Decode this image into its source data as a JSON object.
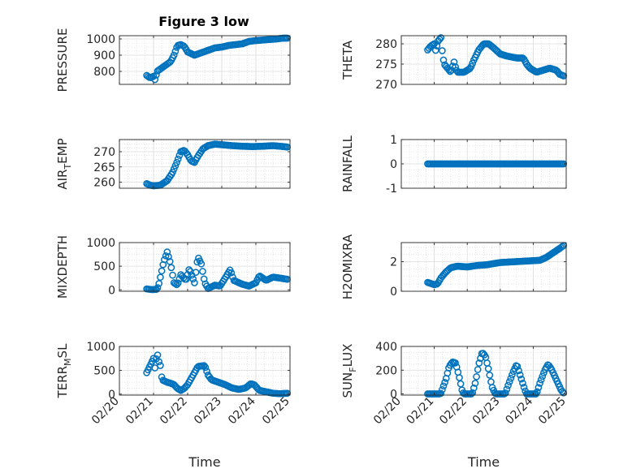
{
  "figure": {
    "title": "Figure 3 low"
  },
  "colors": {
    "marker": "#0072BD",
    "grid": "#d4d4d4",
    "axis": "#262626"
  },
  "chart_data": [
    {
      "type": "scatter",
      "id": "pressure",
      "ylabel": "PRESSURE",
      "ylim": [
        720,
        1020
      ],
      "yticks": [
        800,
        900,
        1000
      ],
      "ytick_labels": [
        "800",
        "900",
        "1000"
      ],
      "xlim": [
        0,
        5
      ],
      "xticks": [
        0,
        1,
        2,
        3,
        4,
        5
      ],
      "xtick_labels": [
        "02/20",
        "02/21",
        "02/22",
        "02/23",
        "02/24",
        "02/25"
      ],
      "show_xticklabels": false,
      "xlabel": "",
      "grid": true,
      "keypoints": [
        [
          0.8,
          775
        ],
        [
          0.9,
          760
        ],
        [
          1.0,
          770
        ],
        [
          1.05,
          745
        ],
        [
          1.1,
          800
        ],
        [
          1.3,
          830
        ],
        [
          1.5,
          860
        ],
        [
          1.6,
          900
        ],
        [
          1.7,
          960
        ],
        [
          1.8,
          965
        ],
        [
          1.9,
          955
        ],
        [
          2.0,
          920
        ],
        [
          2.2,
          900
        ],
        [
          2.4,
          915
        ],
        [
          2.6,
          930
        ],
        [
          2.8,
          945
        ],
        [
          3.0,
          950
        ],
        [
          3.2,
          960
        ],
        [
          3.4,
          965
        ],
        [
          3.6,
          970
        ],
        [
          3.8,
          985
        ],
        [
          4.0,
          990
        ],
        [
          4.3,
          995
        ],
        [
          4.6,
          1000
        ],
        [
          4.8,
          1005
        ],
        [
          4.95,
          1005
        ]
      ]
    },
    {
      "type": "scatter",
      "id": "theta",
      "ylabel": "THETA",
      "ylim": [
        270,
        282
      ],
      "yticks": [
        270,
        275,
        280
      ],
      "ytick_labels": [
        "270",
        "275",
        "280"
      ],
      "xlim": [
        0,
        5
      ],
      "xticks": [
        0,
        1,
        2,
        3,
        4,
        5
      ],
      "xtick_labels": [
        "02/20",
        "02/21",
        "02/22",
        "02/23",
        "02/24",
        "02/25"
      ],
      "show_xticklabels": false,
      "xlabel": "",
      "grid": true,
      "keypoints": [
        [
          0.8,
          278.5
        ],
        [
          0.9,
          279.5
        ],
        [
          1.0,
          280
        ],
        [
          1.05,
          278
        ],
        [
          1.1,
          280.5
        ],
        [
          1.2,
          281.5
        ],
        [
          1.25,
          277.5
        ],
        [
          1.3,
          275
        ],
        [
          1.4,
          274
        ],
        [
          1.5,
          273
        ],
        [
          1.6,
          275.5
        ],
        [
          1.65,
          274
        ],
        [
          1.7,
          273
        ],
        [
          1.9,
          273
        ],
        [
          2.1,
          274
        ],
        [
          2.2,
          276
        ],
        [
          2.35,
          278.5
        ],
        [
          2.5,
          280
        ],
        [
          2.65,
          280
        ],
        [
          2.8,
          279
        ],
        [
          3.0,
          277.5
        ],
        [
          3.2,
          277
        ],
        [
          3.5,
          276.5
        ],
        [
          3.7,
          276.5
        ],
        [
          3.8,
          275
        ],
        [
          3.9,
          274
        ],
        [
          4.1,
          273
        ],
        [
          4.3,
          273.5
        ],
        [
          4.5,
          274
        ],
        [
          4.7,
          273.5
        ],
        [
          4.8,
          272.5
        ],
        [
          4.95,
          272
        ]
      ]
    },
    {
      "type": "scatter",
      "id": "airtemp",
      "ylabel": "AIR_TEMP",
      "ylim": [
        258,
        274
      ],
      "yticks": [
        260,
        265,
        270
      ],
      "ytick_labels": [
        "260",
        "265",
        "270"
      ],
      "xlim": [
        0,
        5
      ],
      "xticks": [
        0,
        1,
        2,
        3,
        4,
        5
      ],
      "xtick_labels": [
        "02/20",
        "02/21",
        "02/22",
        "02/23",
        "02/24",
        "02/25"
      ],
      "show_xticklabels": false,
      "xlabel": "",
      "grid": true,
      "keypoints": [
        [
          0.8,
          259.5
        ],
        [
          0.9,
          259
        ],
        [
          1.0,
          258.8
        ],
        [
          1.2,
          259
        ],
        [
          1.4,
          260.5
        ],
        [
          1.55,
          263
        ],
        [
          1.7,
          267
        ],
        [
          1.8,
          270
        ],
        [
          1.9,
          270.5
        ],
        [
          2.0,
          269
        ],
        [
          2.1,
          267
        ],
        [
          2.2,
          266.5
        ],
        [
          2.3,
          268.5
        ],
        [
          2.45,
          271
        ],
        [
          2.6,
          272
        ],
        [
          2.8,
          272.5
        ],
        [
          3.0,
          272.3
        ],
        [
          3.3,
          272
        ],
        [
          3.6,
          271.8
        ],
        [
          3.9,
          271.7
        ],
        [
          4.2,
          271.8
        ],
        [
          4.5,
          272
        ],
        [
          4.8,
          271.7
        ],
        [
          4.95,
          271.5
        ]
      ]
    },
    {
      "type": "scatter",
      "id": "rainfall",
      "ylabel": "RAINFALL",
      "ylim": [
        -1,
        1
      ],
      "yticks": [
        -1,
        0,
        1
      ],
      "ytick_labels": [
        "-1",
        "0",
        "1"
      ],
      "xlim": [
        0,
        5
      ],
      "xticks": [
        0,
        1,
        2,
        3,
        4,
        5
      ],
      "xtick_labels": [
        "02/20",
        "02/21",
        "02/22",
        "02/23",
        "02/24",
        "02/25"
      ],
      "show_xticklabels": false,
      "xlabel": "",
      "grid": true,
      "keypoints": [
        [
          0.8,
          0
        ],
        [
          4.95,
          0
        ]
      ]
    },
    {
      "type": "scatter",
      "id": "mixdepth",
      "ylabel": "MIXDEPTH",
      "ylim": [
        -30,
        1000
      ],
      "yticks": [
        0,
        500,
        1000
      ],
      "ytick_labels": [
        "0",
        "500",
        "1000"
      ],
      "xlim": [
        0,
        5
      ],
      "xticks": [
        0,
        1,
        2,
        3,
        4,
        5
      ],
      "xtick_labels": [
        "02/20",
        "02/21",
        "02/22",
        "02/23",
        "02/24",
        "02/25"
      ],
      "show_xticklabels": false,
      "xlabel": "",
      "grid": true,
      "keypoints": [
        [
          0.8,
          20
        ],
        [
          0.95,
          5
        ],
        [
          1.1,
          10
        ],
        [
          1.15,
          100
        ],
        [
          1.3,
          600
        ],
        [
          1.4,
          800
        ],
        [
          1.5,
          550
        ],
        [
          1.6,
          150
        ],
        [
          1.7,
          100
        ],
        [
          1.8,
          320
        ],
        [
          1.95,
          200
        ],
        [
          2.05,
          450
        ],
        [
          2.2,
          150
        ],
        [
          2.3,
          700
        ],
        [
          2.4,
          550
        ],
        [
          2.5,
          150
        ],
        [
          2.6,
          30
        ],
        [
          2.8,
          100
        ],
        [
          2.95,
          80
        ],
        [
          3.1,
          250
        ],
        [
          3.25,
          430
        ],
        [
          3.35,
          200
        ],
        [
          3.6,
          120
        ],
        [
          3.8,
          80
        ],
        [
          4.0,
          150
        ],
        [
          4.1,
          300
        ],
        [
          4.3,
          200
        ],
        [
          4.5,
          270
        ],
        [
          4.7,
          250
        ],
        [
          4.95,
          220
        ]
      ]
    },
    {
      "type": "scatter",
      "id": "h2omixra",
      "ylabel": "H2OMIXRA",
      "ylim": [
        0,
        3.3
      ],
      "yticks": [
        0,
        2
      ],
      "ytick_labels": [
        "0",
        "2"
      ],
      "xlim": [
        0,
        5
      ],
      "xticks": [
        0,
        1,
        2,
        3,
        4,
        5
      ],
      "xtick_labels": [
        "02/20",
        "02/21",
        "02/22",
        "02/23",
        "02/24",
        "02/25"
      ],
      "show_xticklabels": false,
      "xlabel": "",
      "grid": true,
      "keypoints": [
        [
          0.8,
          0.6
        ],
        [
          1.0,
          0.45
        ],
        [
          1.1,
          0.5
        ],
        [
          1.2,
          0.9
        ],
        [
          1.35,
          1.3
        ],
        [
          1.5,
          1.6
        ],
        [
          1.7,
          1.7
        ],
        [
          2.0,
          1.65
        ],
        [
          2.3,
          1.75
        ],
        [
          2.6,
          1.8
        ],
        [
          3.0,
          1.95
        ],
        [
          3.4,
          2.0
        ],
        [
          3.8,
          2.05
        ],
        [
          4.2,
          2.1
        ],
        [
          4.4,
          2.3
        ],
        [
          4.6,
          2.6
        ],
        [
          4.8,
          2.9
        ],
        [
          4.95,
          3.15
        ]
      ]
    },
    {
      "type": "scatter",
      "id": "terrmsl",
      "ylabel": "TERR_MSL",
      "ylim": [
        -20,
        1000
      ],
      "yticks": [
        0,
        500,
        1000
      ],
      "ytick_labels": [
        "0",
        "500",
        "1000"
      ],
      "xlim": [
        0,
        5
      ],
      "xticks": [
        0,
        1,
        2,
        3,
        4,
        5
      ],
      "xtick_labels": [
        "02/20",
        "02/21",
        "02/22",
        "02/23",
        "02/24",
        "02/25"
      ],
      "show_xticklabels": true,
      "xlabel": "Time",
      "grid": true,
      "keypoints": [
        [
          0.8,
          450
        ],
        [
          0.9,
          600
        ],
        [
          1.0,
          750
        ],
        [
          1.05,
          500
        ],
        [
          1.1,
          900
        ],
        [
          1.15,
          700
        ],
        [
          1.2,
          600
        ],
        [
          1.25,
          300
        ],
        [
          1.4,
          250
        ],
        [
          1.5,
          230
        ],
        [
          1.6,
          200
        ],
        [
          1.7,
          120
        ],
        [
          1.8,
          80
        ],
        [
          1.9,
          120
        ],
        [
          2.0,
          200
        ],
        [
          2.2,
          450
        ],
        [
          2.3,
          580
        ],
        [
          2.5,
          600
        ],
        [
          2.6,
          400
        ],
        [
          2.7,
          300
        ],
        [
          2.9,
          250
        ],
        [
          3.1,
          200
        ],
        [
          3.3,
          130
        ],
        [
          3.5,
          100
        ],
        [
          3.7,
          130
        ],
        [
          3.85,
          220
        ],
        [
          3.95,
          200
        ],
        [
          4.1,
          80
        ],
        [
          4.3,
          50
        ],
        [
          4.5,
          20
        ],
        [
          4.7,
          10
        ],
        [
          4.95,
          20
        ]
      ]
    },
    {
      "type": "scatter",
      "id": "sunflux",
      "ylabel": "SUN_FLUX",
      "ylim": [
        -10,
        400
      ],
      "yticks": [
        0,
        200,
        400
      ],
      "ytick_labels": [
        "0",
        "200",
        "400"
      ],
      "xlim": [
        0,
        5
      ],
      "xticks": [
        0,
        1,
        2,
        3,
        4,
        5
      ],
      "xtick_labels": [
        "02/20",
        "02/21",
        "02/22",
        "02/23",
        "02/24",
        "02/25"
      ],
      "show_xticklabels": true,
      "xlabel": "Time",
      "grid": true,
      "keypoints": [
        [
          0.8,
          0
        ],
        [
          1.15,
          0
        ],
        [
          1.2,
          5
        ],
        [
          1.35,
          120
        ],
        [
          1.45,
          230
        ],
        [
          1.55,
          270
        ],
        [
          1.65,
          260
        ],
        [
          1.75,
          150
        ],
        [
          1.85,
          20
        ],
        [
          1.9,
          0
        ],
        [
          2.15,
          0
        ],
        [
          2.25,
          100
        ],
        [
          2.35,
          250
        ],
        [
          2.45,
          350
        ],
        [
          2.55,
          320
        ],
        [
          2.65,
          200
        ],
        [
          2.75,
          60
        ],
        [
          2.85,
          0
        ],
        [
          3.15,
          0
        ],
        [
          3.25,
          80
        ],
        [
          3.4,
          190
        ],
        [
          3.5,
          250
        ],
        [
          3.6,
          160
        ],
        [
          3.75,
          30
        ],
        [
          3.8,
          0
        ],
        [
          4.1,
          0
        ],
        [
          4.2,
          90
        ],
        [
          4.35,
          200
        ],
        [
          4.45,
          250
        ],
        [
          4.55,
          210
        ],
        [
          4.7,
          120
        ],
        [
          4.85,
          30
        ],
        [
          4.95,
          0
        ]
      ]
    }
  ]
}
